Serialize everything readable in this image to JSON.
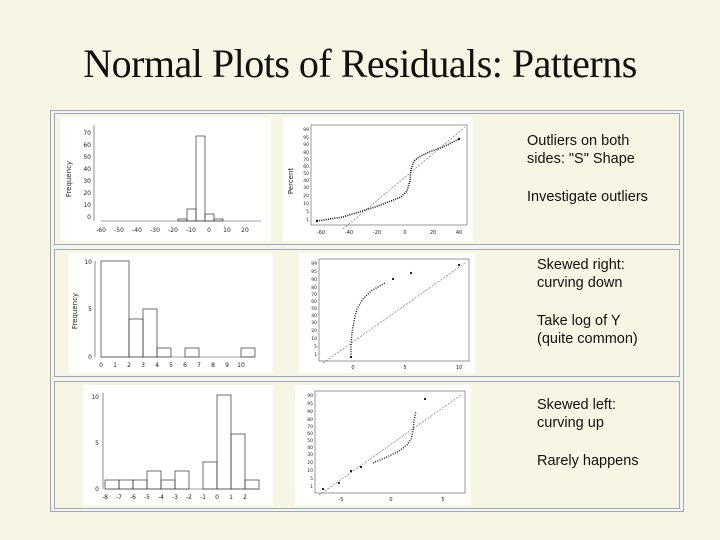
{
  "slide": {
    "title": "Normal Plots of Residuals: Patterns"
  },
  "rows": [
    {
      "caption_lines": [
        "Outliers on both",
        "sides: \"S\" Shape"
      ],
      "note_lines": [
        "Investigate outliers"
      ],
      "histogram": {
        "ylabel": "Frequency",
        "yticks": [
          "70",
          "60",
          "50",
          "40",
          "30",
          "20",
          "10",
          "0"
        ],
        "xticks": [
          "-60",
          "-50",
          "-40",
          "-30",
          "-20",
          "-10",
          "0",
          "10",
          "20"
        ]
      },
      "probability_plot": {
        "ylabel": "Percent",
        "yticks": [
          "99",
          "95",
          "90",
          "80",
          "70",
          "60",
          "50",
          "40",
          "30",
          "20",
          "10",
          "5",
          "1"
        ],
        "xticks": [
          "-60",
          "-40",
          "-20",
          "0",
          "20",
          "40"
        ]
      }
    },
    {
      "caption_lines": [
        "Skewed right:",
        "curving down"
      ],
      "note_lines": [
        "Take  log of Y",
        "(quite common)"
      ],
      "histogram": {
        "ylabel": "Frequency",
        "yticks": [
          "10",
          "5",
          "0"
        ],
        "xticks": [
          "0",
          "1",
          "2",
          "3",
          "4",
          "5",
          "6",
          "7",
          "8",
          "9",
          "10"
        ]
      },
      "probability_plot": {
        "ylabel": "",
        "yticks": [
          "99",
          "95",
          "90",
          "80",
          "70",
          "60",
          "50",
          "40",
          "30",
          "20",
          "10",
          "5",
          "1"
        ],
        "xticks": [
          "0",
          "5",
          "10"
        ]
      }
    },
    {
      "caption_lines": [
        "Skewed left:",
        "curving up"
      ],
      "note_lines": [
        "Rarely happens"
      ],
      "histogram": {
        "ylabel": "",
        "yticks": [
          "10",
          "5",
          "0"
        ],
        "xticks": [
          "-8",
          "-7",
          "-6",
          "-5",
          "-4",
          "-3",
          "-2",
          "-1",
          "0",
          "1",
          "2"
        ]
      },
      "probability_plot": {
        "ylabel": "",
        "yticks": [
          "99",
          "95",
          "90",
          "80",
          "70",
          "60",
          "50",
          "40",
          "30",
          "20",
          "10",
          "5",
          "1"
        ],
        "xticks": [
          "-5",
          "0",
          "5"
        ]
      }
    }
  ]
}
